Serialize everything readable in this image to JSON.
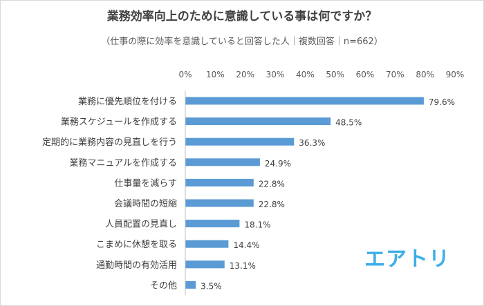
{
  "chart_data": {
    "type": "bar",
    "orientation": "horizontal",
    "title": "業務効率向上のために意識している事は何ですか？",
    "subtitle": "（仕事の際に効率を意識していると回答した人｜複数回答｜n=662）",
    "categories": [
      "業務に優先順位を付ける",
      "業務スケジュールを作成する",
      "定期的に業務内容の見直しを行う",
      "業務マニュアルを作成する",
      "仕事量を減らす",
      "会議時間の短縮",
      "人員配置の見直し",
      "こまめに休憩を取る",
      "通勤時間の有効活用",
      "その他"
    ],
    "values": [
      79.6,
      48.5,
      36.3,
      24.9,
      22.8,
      22.8,
      18.1,
      14.4,
      13.1,
      3.5
    ],
    "value_labels": [
      "79.6%",
      "48.5%",
      "36.3%",
      "24.9%",
      "22.8%",
      "22.8%",
      "18.1%",
      "14.4%",
      "13.1%",
      "3.5%"
    ],
    "xlim": [
      0,
      90
    ],
    "x_ticks": [
      "0%",
      "10%",
      "20%",
      "30%",
      "40%",
      "50%",
      "60%",
      "70%",
      "80%",
      "90%"
    ],
    "axis_position": "top",
    "grid": false,
    "bar_color": "#5b9bd5"
  },
  "brand": {
    "text": "エアトリ",
    "color": "#3eaee8"
  }
}
